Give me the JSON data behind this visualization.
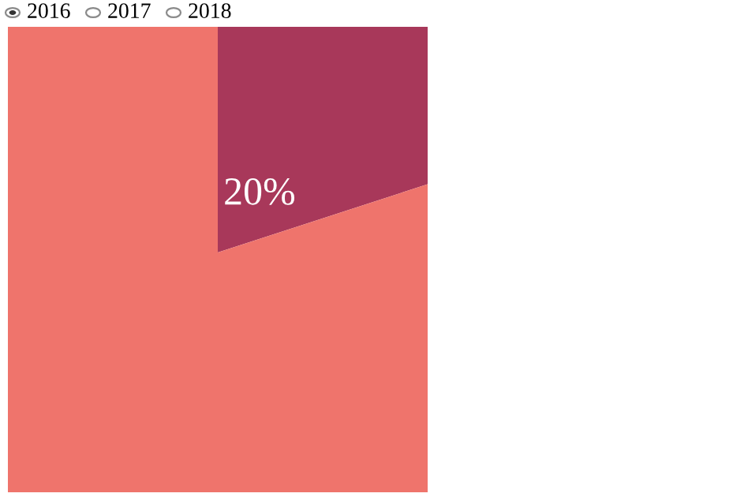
{
  "chart_data": {
    "type": "pie",
    "categories": [
      null,
      null
    ],
    "values": [
      20,
      80
    ],
    "colors": [
      "#a8385a",
      "#ef746c"
    ],
    "value_labels": [
      "20%",
      null
    ],
    "annotations": [
      "2016",
      "2017",
      "2018"
    ]
  }
}
